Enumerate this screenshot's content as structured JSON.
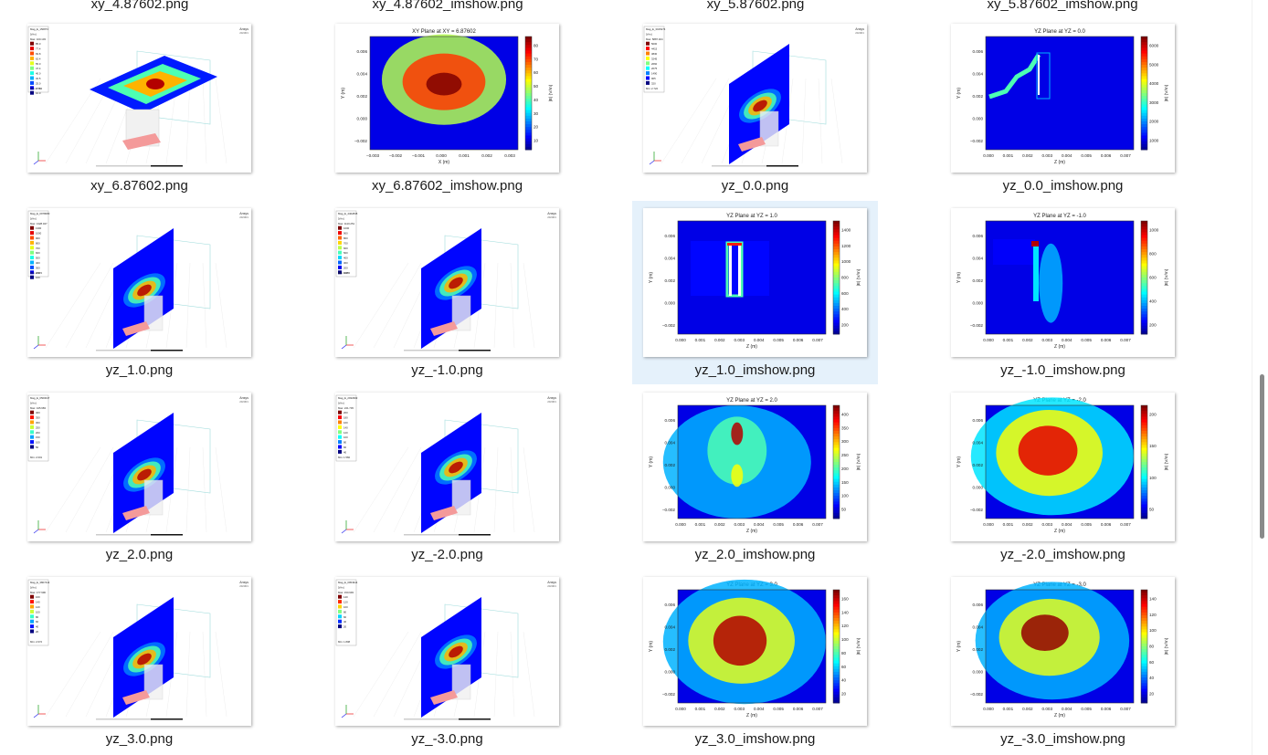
{
  "explorer": {
    "top_labels": [
      "xy_4.87602.png",
      "xy_4.87602_imshow.png",
      "xy_5.87602.png",
      "xy_5.87602_imshow.png"
    ],
    "selected_file": "yz_1.0_imshow.png",
    "files": [
      {
        "name": "xy_6.87602.png",
        "kind": "3d",
        "plane": "xy",
        "legend_rows": [
          "Mag_E_156873",
          "[V/m]",
          "Max: 100.103",
          "85.0",
          "77.4",
          "69.8",
          "62.4",
          "55.0",
          "47.4",
          "40.0",
          "32.5",
          "25.0",
          "17.5",
          "10.0"
        ],
        "legend_min": "Min: 2.724",
        "brand": "Ansys",
        "brand_sub": "2023R1"
      },
      {
        "name": "xy_6.87602_imshow.png",
        "kind": "imshow",
        "title": "XY Plane at XY = 6.87602",
        "xlabel": "X (m)",
        "ylabel": "Y (m)",
        "cbar_label": "|E| (V/m)",
        "cbar_ticks": [
          "80",
          "70",
          "60",
          "50",
          "40",
          "30",
          "20",
          "10"
        ],
        "xticks": [
          "−0.003",
          "−0.002",
          "−0.001",
          "0.000",
          "0.001",
          "0.002",
          "0.003"
        ],
        "yticks": [
          "0.006",
          "0.004",
          "0.002",
          "0.000",
          "−0.002"
        ],
        "pattern": "xy"
      },
      {
        "name": "yz_0.0.png",
        "kind": "3d",
        "plane": "yz",
        "legend_rows": [
          "Mag_E_3015274",
          "[V/m]",
          "Max: 5887.404",
          "5000",
          "4415",
          "3830",
          "3245",
          "2660",
          "2075",
          "1490",
          "905",
          "320"
        ],
        "legend_min": "Min: 2.722",
        "brand": "Ansys",
        "brand_sub": "2023R1"
      },
      {
        "name": "yz_0.0_imshow.png",
        "kind": "imshow",
        "title": "YZ Plane at YZ = 0.0",
        "xlabel": "Z (m)",
        "ylabel": "Y (m)",
        "cbar_label": "|E| (V/m)",
        "cbar_ticks": [
          "6000",
          "5000",
          "4000",
          "3000",
          "2000",
          "1000"
        ],
        "xticks": [
          "0.000",
          "0.001",
          "0.002",
          "0.003",
          "0.004",
          "0.005",
          "0.006",
          "0.007"
        ],
        "yticks": [
          "0.006",
          "0.004",
          "0.002",
          "0.000",
          "−0.002"
        ],
        "pattern": "yz0"
      },
      {
        "name": "yz_1.0.png",
        "kind": "3d",
        "plane": "yz",
        "legend_rows": [
          "Mag_E_0978080",
          "[V/m]",
          "Max: 1328.047",
          "1300",
          "1000",
          "900",
          "800",
          "700",
          "600",
          "500",
          "400",
          "300",
          "200",
          "100"
        ],
        "legend_min": "Min: 2.372",
        "brand": "Ansys",
        "brand_sub": "2023R1"
      },
      {
        "name": "yz_-1.0.png",
        "kind": "3d",
        "plane": "yz",
        "legend_rows": [
          "Mag_E_4402845",
          "[V/m]",
          "Max: 1110.251",
          "1000",
          "900",
          "800",
          "700",
          "600",
          "500",
          "400",
          "300",
          "200",
          "100"
        ],
        "legend_min": "Min: 3.055",
        "brand": "Ansys",
        "brand_sub": "2023R1"
      },
      {
        "name": "yz_1.0_imshow.png",
        "kind": "imshow",
        "title": "YZ Plane at YZ = 1.0",
        "xlabel": "Z (m)",
        "ylabel": "Y (m)",
        "cbar_label": "|E| (V/m)",
        "cbar_ticks": [
          "1400",
          "1200",
          "1000",
          "800",
          "600",
          "400",
          "200"
        ],
        "xticks": [
          "0.000",
          "0.001",
          "0.002",
          "0.003",
          "0.004",
          "0.005",
          "0.006",
          "0.007"
        ],
        "yticks": [
          "0.006",
          "0.004",
          "0.002",
          "0.000",
          "−0.002"
        ],
        "pattern": "yz1"
      },
      {
        "name": "yz_-1.0_imshow.png",
        "kind": "imshow",
        "title": "YZ Plane at YZ = -1.0",
        "xlabel": "Z (m)",
        "ylabel": "Y (m)",
        "cbar_label": "|E| (V/m)",
        "cbar_ticks": [
          "1000",
          "800",
          "600",
          "400",
          "200"
        ],
        "xticks": [
          "0.000",
          "0.001",
          "0.002",
          "0.003",
          "0.004",
          "0.005",
          "0.006",
          "0.007"
        ],
        "yticks": [
          "0.006",
          "0.004",
          "0.002",
          "0.000",
          "−0.002"
        ],
        "pattern": "yzm1"
      },
      {
        "name": "yz_2.0.png",
        "kind": "3d",
        "plane": "yz",
        "legend_rows": [
          "Mag_E_0500047",
          "[V/m]",
          "Max: 445.983",
          "400",
          "350",
          "300",
          "250",
          "200",
          "150",
          "100",
          "50"
        ],
        "legend_min": "Min: 2.001",
        "brand": "Ansys",
        "brand_sub": "2023R1"
      },
      {
        "name": "yz_-2.0.png",
        "kind": "3d",
        "plane": "yz",
        "legend_rows": [
          "Mag_E_2932993",
          "[V/m]",
          "Max: 241.745",
          "200",
          "180",
          "160",
          "140",
          "120",
          "100",
          "80",
          "60",
          "40"
        ],
        "legend_min": "Min: 1.582",
        "brand": "Ansys",
        "brand_sub": "2023R1"
      },
      {
        "name": "yz_2.0_imshow.png",
        "kind": "imshow",
        "title": "YZ Plane at YZ = 2.0",
        "xlabel": "Z (m)",
        "ylabel": "Y (m)",
        "cbar_label": "|E| (V/m)",
        "cbar_ticks": [
          "400",
          "350",
          "300",
          "250",
          "200",
          "150",
          "100",
          "50"
        ],
        "xticks": [
          "0.000",
          "0.001",
          "0.002",
          "0.003",
          "0.004",
          "0.005",
          "0.006",
          "0.007"
        ],
        "yticks": [
          "0.006",
          "0.004",
          "0.002",
          "0.000",
          "−0.002"
        ],
        "pattern": "yz2"
      },
      {
        "name": "yz_-2.0_imshow.png",
        "kind": "imshow",
        "title": "YZ Plane at YZ = -2.0",
        "xlabel": "Z (m)",
        "ylabel": "Y (m)",
        "cbar_label": "|E| (V/m)",
        "cbar_ticks": [
          "200",
          "150",
          "100",
          "50"
        ],
        "xticks": [
          "0.000",
          "0.001",
          "0.002",
          "0.003",
          "0.004",
          "0.005",
          "0.006",
          "0.007"
        ],
        "yticks": [
          "0.006",
          "0.004",
          "0.002",
          "0.000",
          "−0.002"
        ],
        "pattern": "yzm2"
      },
      {
        "name": "yz_3.0.png",
        "kind": "3d",
        "plane": "yz",
        "legend_rows": [
          "Mag_E_3807414",
          "[V/m]",
          "Max: 177.996",
          "160",
          "140",
          "120",
          "100",
          "80",
          "60",
          "40",
          "20"
        ],
        "legend_min": "Min: 2.672",
        "brand": "Ansys",
        "brand_sub": "2023R1"
      },
      {
        "name": "yz_-3.0.png",
        "kind": "3d",
        "plane": "yz",
        "legend_rows": [
          "Mag_E_0954914",
          "[V/m]",
          "Max: 150.993",
          "140",
          "120",
          "100",
          "80",
          "60",
          "40",
          "20"
        ],
        "legend_min": "Min: 1.808",
        "brand": "Ansys",
        "brand_sub": "2023R1"
      },
      {
        "name": "yz_3.0_imshow.png",
        "kind": "imshow",
        "title": "YZ Plane at YZ = 3.0",
        "xlabel": "Z (m)",
        "ylabel": "Y (m)",
        "cbar_label": "|E| (V/m)",
        "cbar_ticks": [
          "160",
          "140",
          "120",
          "100",
          "80",
          "60",
          "40",
          "20"
        ],
        "xticks": [
          "0.000",
          "0.001",
          "0.002",
          "0.003",
          "0.004",
          "0.005",
          "0.006",
          "0.007"
        ],
        "yticks": [
          "0.006",
          "0.004",
          "0.002",
          "0.000",
          "−0.002"
        ],
        "pattern": "yz3"
      },
      {
        "name": "yz_-3.0_imshow.png",
        "kind": "imshow",
        "title": "YZ Plane at YZ = -3.0",
        "xlabel": "Z (m)",
        "ylabel": "Y (m)",
        "cbar_label": "|E| (V/m)",
        "cbar_ticks": [
          "140",
          "120",
          "100",
          "80",
          "60",
          "40",
          "20"
        ],
        "xticks": [
          "0.000",
          "0.001",
          "0.002",
          "0.003",
          "0.004",
          "0.005",
          "0.006",
          "0.007"
        ],
        "yticks": [
          "0.006",
          "0.004",
          "0.002",
          "0.000",
          "−0.002"
        ],
        "pattern": "yzm3"
      }
    ]
  }
}
